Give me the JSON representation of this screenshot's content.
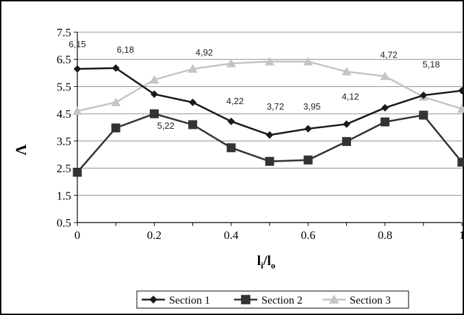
{
  "chart_data": {
    "type": "line",
    "x": [
      0,
      0.1,
      0.2,
      0.3,
      0.4,
      0.5,
      0.6,
      0.7,
      0.8,
      0.9,
      1.0
    ],
    "x_ticks": [
      "0",
      "0.2",
      "0.4",
      "0.6",
      "0.8",
      "1"
    ],
    "x_tick_values": [
      0,
      0.2,
      0.4,
      0.6,
      0.8,
      1.0
    ],
    "y_ticks": [
      "0.5",
      "1.5",
      "2.5",
      "3.5",
      "4.5",
      "5.5",
      "6.5",
      "7.5"
    ],
    "y_tick_values": [
      0.5,
      1.5,
      2.5,
      3.5,
      4.5,
      5.5,
      6.5,
      7.5
    ],
    "xlim": [
      0,
      1
    ],
    "ylim": [
      0.5,
      7.5
    ],
    "xlabel": {
      "main": "l",
      "sub1": "i",
      "slash": "/l",
      "sub2": "o"
    },
    "ylabel": "Λ",
    "grid": "horizontal",
    "legend_position": "bottom",
    "series": [
      {
        "name": "Section 1",
        "marker": "diamond",
        "color": "#1a1a1a",
        "values": [
          6.15,
          6.18,
          5.22,
          4.92,
          4.22,
          3.72,
          3.95,
          4.12,
          4.72,
          5.18,
          5.35
        ]
      },
      {
        "name": "Section 2",
        "marker": "square",
        "color": "#333333",
        "values": [
          2.35,
          3.98,
          4.5,
          4.1,
          3.25,
          2.75,
          2.8,
          3.48,
          4.2,
          4.45,
          2.72
        ]
      },
      {
        "name": "Section 3",
        "marker": "triangle",
        "color": "#c4c4c4",
        "values": [
          4.6,
          4.92,
          5.75,
          6.15,
          6.35,
          6.42,
          6.42,
          6.05,
          5.88,
          5.12,
          4.68
        ]
      }
    ],
    "data_labels": [
      {
        "text": "6,15",
        "x": 0.0,
        "y": 6.95
      },
      {
        "text": "6,18",
        "x": 0.125,
        "y": 6.75
      },
      {
        "text": "5,22",
        "x": 0.23,
        "y": 3.95
      },
      {
        "text": "4,92",
        "x": 0.33,
        "y": 6.65
      },
      {
        "text": "4,22",
        "x": 0.41,
        "y": 4.85
      },
      {
        "text": "3,72",
        "x": 0.515,
        "y": 4.65
      },
      {
        "text": "3,95",
        "x": 0.61,
        "y": 4.65
      },
      {
        "text": "4,12",
        "x": 0.71,
        "y": 5.02
      },
      {
        "text": "4,72",
        "x": 0.81,
        "y": 6.55
      },
      {
        "text": "5,18",
        "x": 0.92,
        "y": 6.2
      }
    ]
  }
}
